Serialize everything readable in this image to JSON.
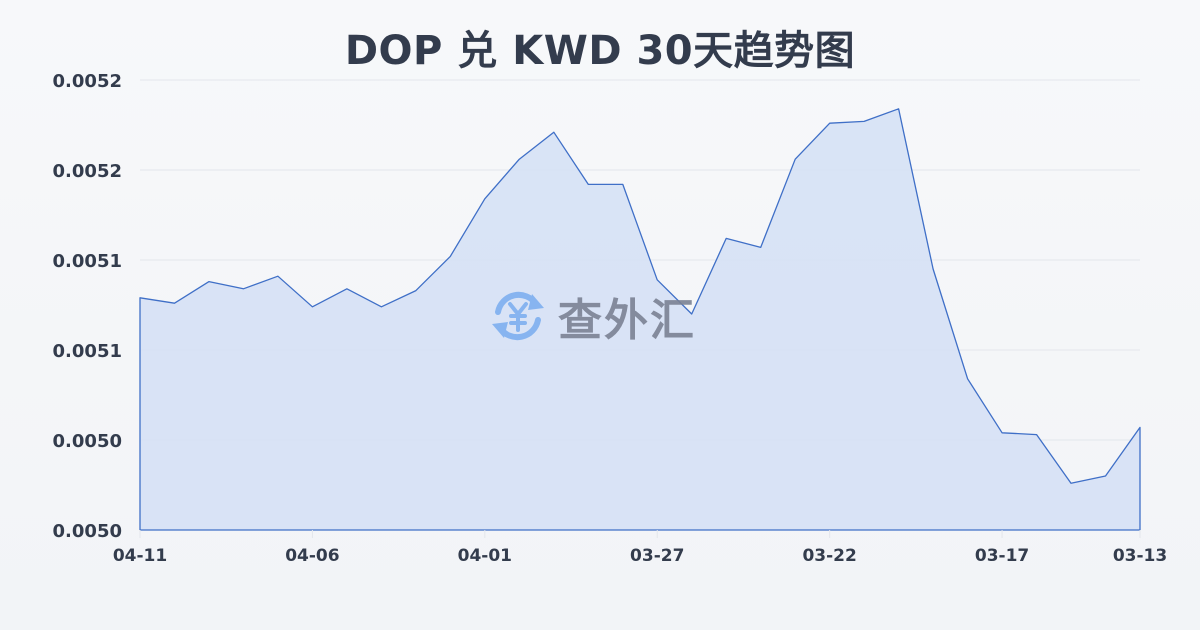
{
  "title": "DOP 兑 KWD 30天趋势图",
  "watermark": {
    "icon": "yen-exchange-icon",
    "text": "查外汇"
  },
  "colors": {
    "line": "#3f6fc7",
    "fill": "#d6e1f5",
    "grid": "#e3e6ec",
    "text": "#333c4d",
    "watermark_icon": "#7fb0f0",
    "watermark_text": "#7b8294"
  },
  "chart_data": {
    "type": "area",
    "title": "DOP 兑 KWD 30天趋势图",
    "xlabel": "",
    "ylabel": "",
    "ylim": [
      0.00497,
      0.00522
    ],
    "grid": true,
    "legend": "none",
    "y_ticks": [
      "0.0052",
      "0.0052",
      "0.0051",
      "0.0051",
      "0.0050",
      "0.0050"
    ],
    "x_ticks": [
      "04-11",
      "04-06",
      "04-01",
      "03-27",
      "03-22",
      "03-17",
      "03-13"
    ],
    "x": [
      "04-11",
      "04-10",
      "04-09",
      "04-08",
      "04-07",
      "04-06",
      "04-05",
      "04-04",
      "04-03",
      "04-02",
      "04-01",
      "03-31",
      "03-30",
      "03-29",
      "03-28",
      "03-27",
      "03-26",
      "03-25",
      "03-24",
      "03-23",
      "03-22",
      "03-21",
      "03-20",
      "03-19",
      "03-18",
      "03-17",
      "03-16",
      "03-15",
      "03-14",
      "03-13"
    ],
    "series": [
      {
        "name": "DOP/KWD",
        "values": [
          0.005099,
          0.005096,
          0.005108,
          0.005104,
          0.005111,
          0.005094,
          0.005104,
          0.005094,
          0.005103,
          0.005122,
          0.005154,
          0.005176,
          0.005191,
          0.005162,
          0.005162,
          0.005109,
          0.00509,
          0.005132,
          0.005127,
          0.005176,
          0.005196,
          0.005197,
          0.005204,
          0.005115,
          0.005054,
          0.005024,
          0.005023,
          0.004996,
          0.005,
          0.005027
        ]
      }
    ]
  }
}
